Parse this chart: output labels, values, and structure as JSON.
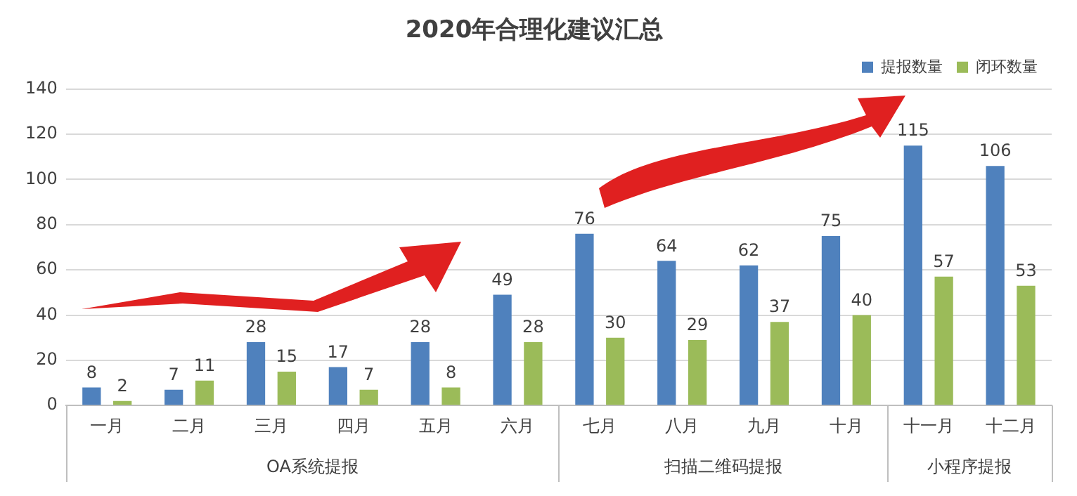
{
  "chart_data": {
    "type": "bar",
    "title": "2020年合理化建议汇总",
    "categories": [
      "一月",
      "二月",
      "三月",
      "四月",
      "五月",
      "六月",
      "七月",
      "八月",
      "九月",
      "十月",
      "十一月",
      "十二月"
    ],
    "series": [
      {
        "name": "提报数量",
        "color": "#4f81bd",
        "values": [
          8,
          7,
          28,
          17,
          28,
          49,
          76,
          64,
          62,
          75,
          115,
          106
        ]
      },
      {
        "name": "闭环数量",
        "color": "#9bbb59",
        "values": [
          2,
          11,
          15,
          7,
          8,
          28,
          30,
          29,
          37,
          40,
          57,
          53
        ]
      }
    ],
    "ylim": [
      0,
      140
    ],
    "yticks": [
      0,
      20,
      40,
      60,
      80,
      100,
      120,
      140
    ],
    "grid": "y",
    "legend": "top right",
    "data_labels": true,
    "annotations": [
      "OA系统提报",
      "扫描二维码提报",
      "小程序提报"
    ]
  }
}
